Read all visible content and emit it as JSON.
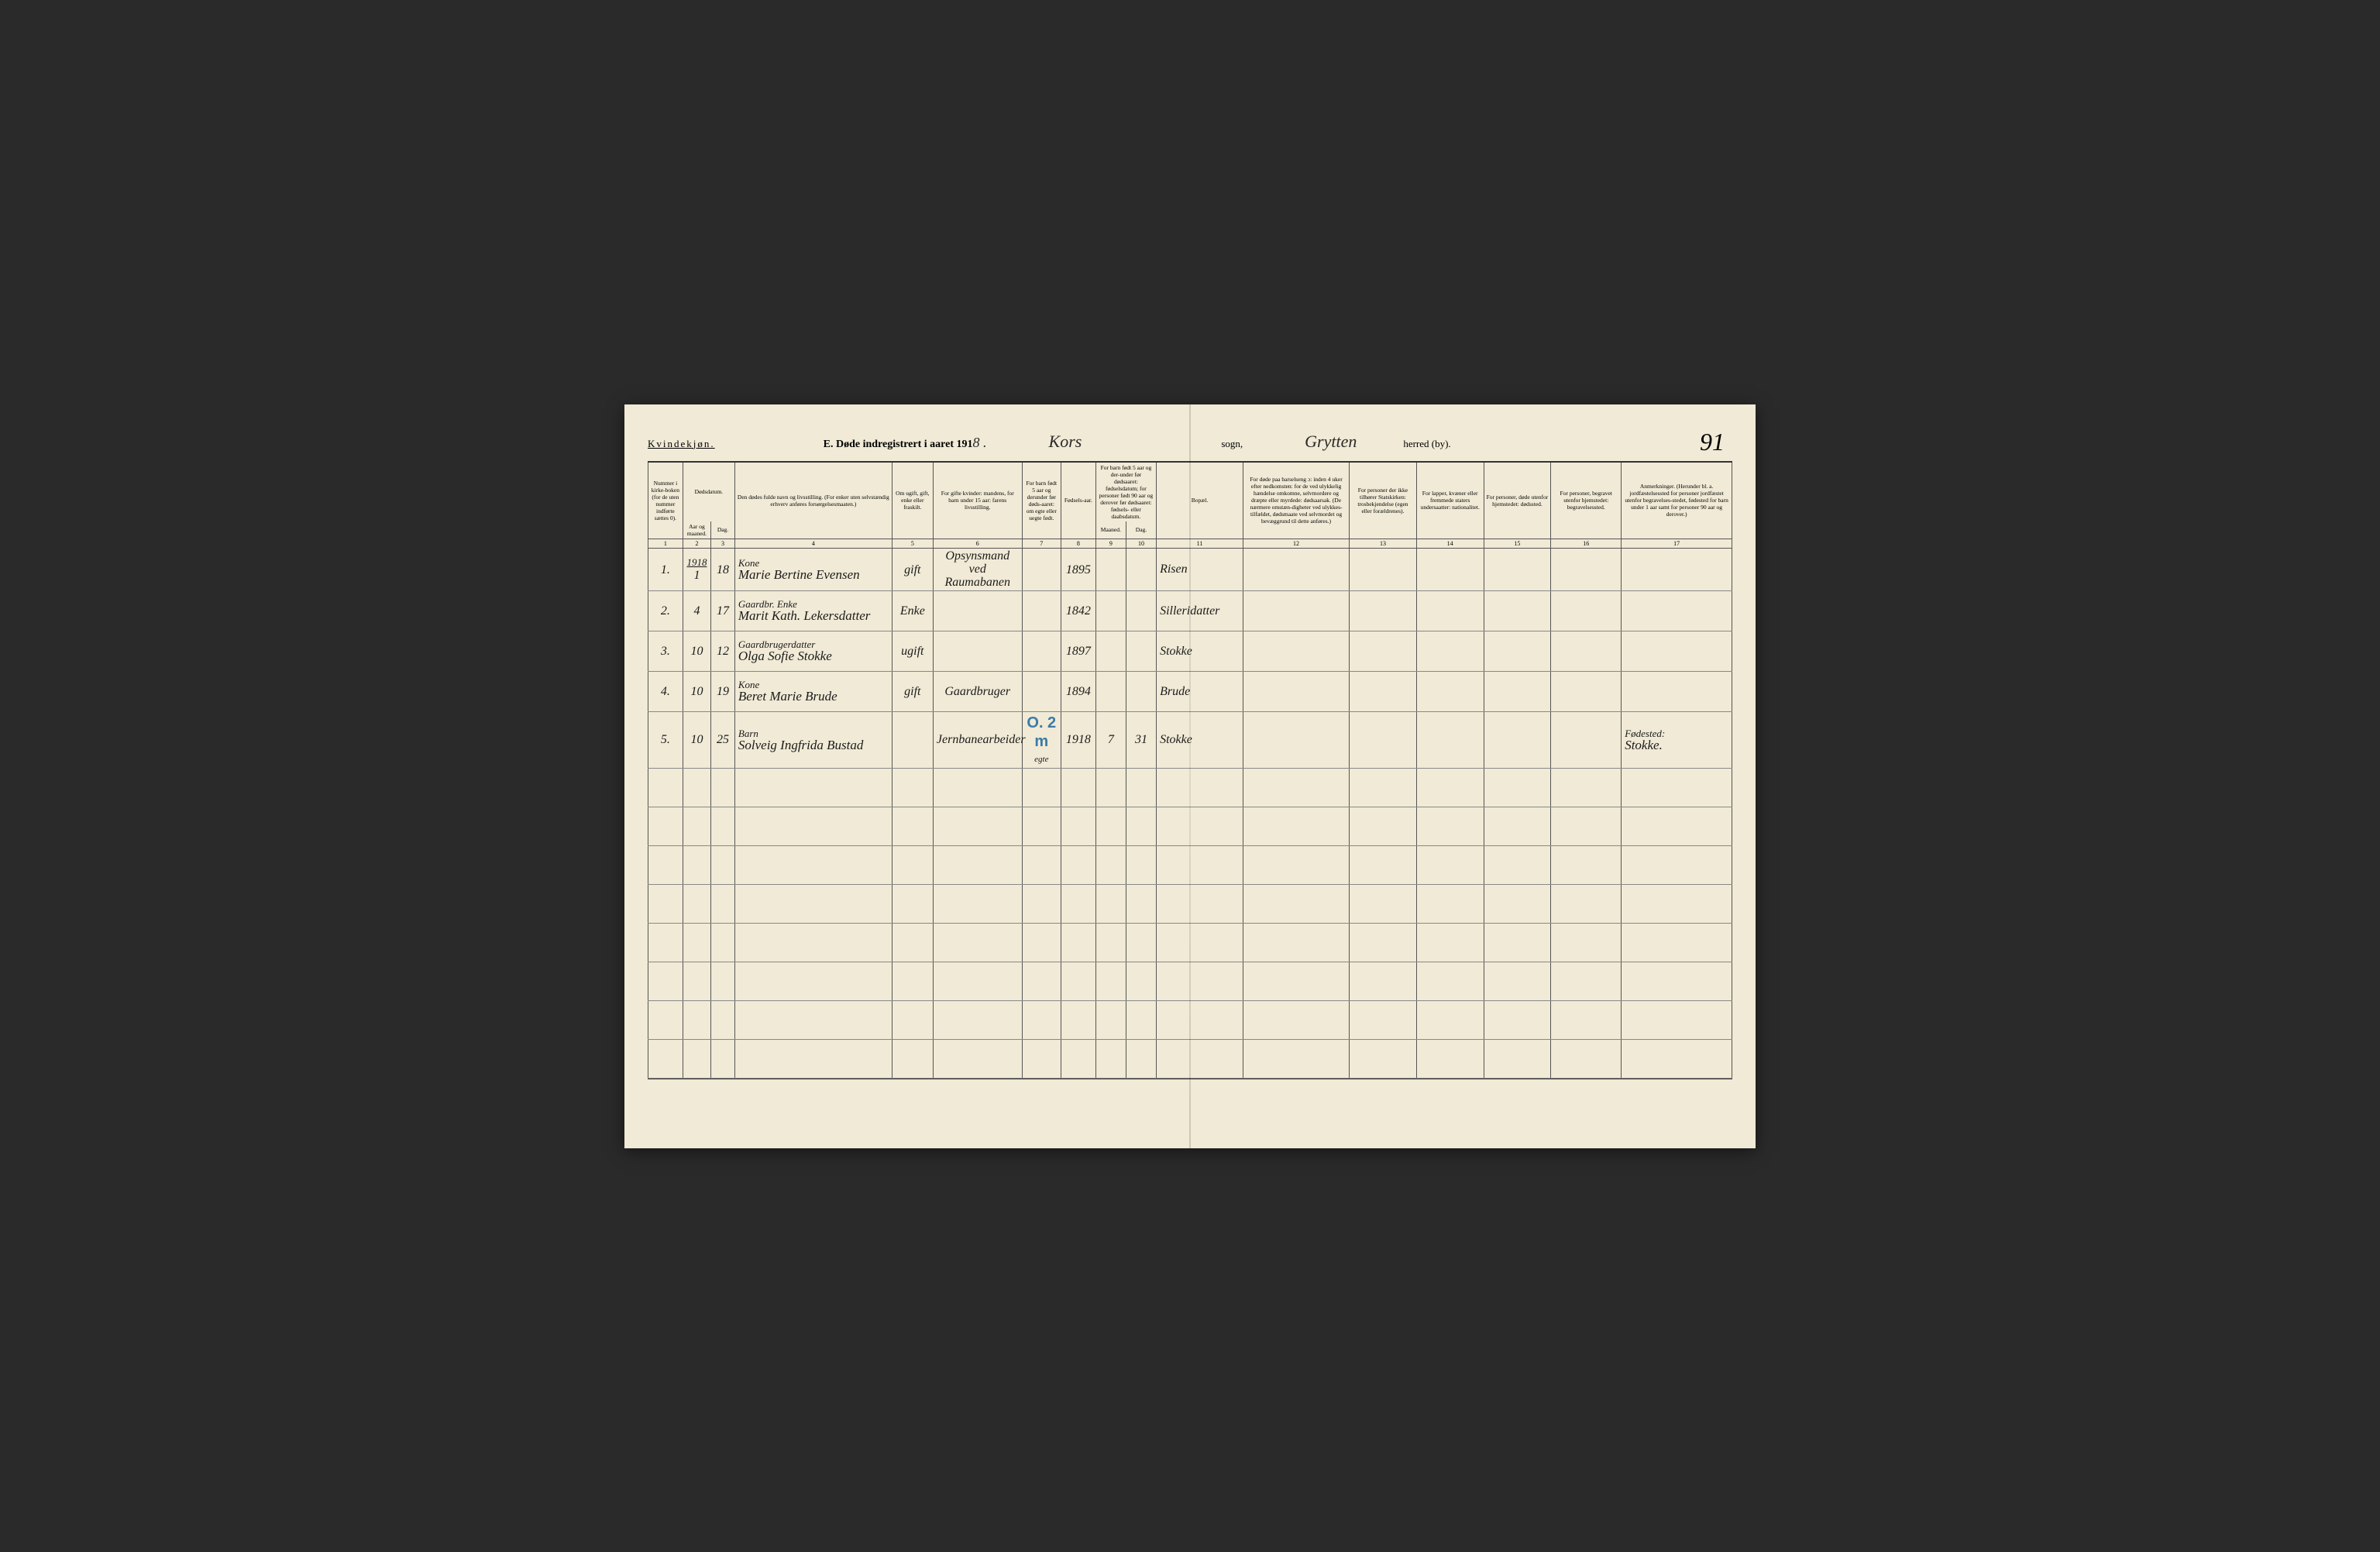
{
  "header": {
    "kvindekjon": "Kvindekjøn.",
    "title_prefix": "E.  Døde indregistrert i aaret 191",
    "year_suffix": "8 .",
    "sogn_name": "Kors",
    "sogn_label": "sogn,",
    "herred_name": "Grytten",
    "herred_label": "herred (by).",
    "page_number": "91"
  },
  "columns": {
    "c1": "Nummer i kirke-boken (for de uten nummer indførte sættes 0).",
    "c2a": "Dødsdatum.",
    "c2_aar": "Aar og maaned.",
    "c2_dag": "Dag.",
    "c4": "Den dødes fulde navn og livsstilling. (For enker uten selvstændig erhverv anføres forsørgelsesmaaten.)",
    "c5": "Om ugift, gift, enke eller fraskilt.",
    "c6": "For gifte kvinder: mandens, for barn under 15 aar: farens livsstilling.",
    "c7": "For barn født 5 aar og derunder før døds-aaret: om egte eller uegte født.",
    "c8": "Fødsels-aar.",
    "c9_10": "For barn født 5 aar og der-under før dødsaaret: fødselsdatum; for personer født 90 aar og derover før dødsaaret: fødsels- eller daabsdatum.",
    "c9": "Maaned.",
    "c10": "Dag.",
    "c11": "Bopæl.",
    "c12": "For døde paa barselseng ɔ: inden 4 uker efter nedkomsten: for de ved ulykkelig hændelse omkomne, selvmordere og dræpte eller myrdede: dødsaarsak. (De nærmere omstæn-digheter ved ulykkes-tilfældet, dødsmaate ved selvmordet og bevæggrund til dette anføres.)",
    "c13": "For personer der ikke tilhører Statskirken: trosbekjendelse (egen eller forældrenes).",
    "c14": "For lapper, kvæner eller fremmede staters undersaatter: nationalitet.",
    "c15": "For personer, døde utenfor hjemstedet: dødssted.",
    "c16": "For personer, begravet utenfor hjemstedet: begravelsessted.",
    "c17": "Anmerkninger. (Herunder bl. a. jordfæstelsessted for personer jordfæstet utenfor begravelses-stedet, fødested for barn under 1 aar samt for personer 90 aar og derover.)"
  },
  "col_numbers": [
    "1",
    "2",
    "3",
    "4",
    "5",
    "6",
    "7",
    "8",
    "9",
    "10",
    "11",
    "12",
    "13",
    "14",
    "15",
    "16",
    "17"
  ],
  "year_header": "1918",
  "rows": [
    {
      "num": "1.",
      "maaned": "1",
      "dag": "18",
      "occupation": "Kone",
      "name": "Marie Bertine Evensen",
      "status": "gift",
      "spouse": "Opsynsmand ved Raumabanen",
      "birth_year": "1895",
      "bopael": "Risen",
      "tick": "✓"
    },
    {
      "num": "2.",
      "maaned": "4",
      "dag": "17",
      "occupation": "Gaardbr. Enke",
      "name": "Marit Kath. Lekersdatter",
      "status": "Enke",
      "spouse": "",
      "birth_year": "1842",
      "bopael": "Silleridatter",
      "tick": "↙"
    },
    {
      "num": "3.",
      "maaned": "10",
      "dag": "12",
      "occupation": "Gaardbrugerdatter",
      "name": "Olga Sofie Stokke",
      "status": "ugift",
      "spouse": "",
      "birth_year": "1897",
      "bopael": "Stokke",
      "tick": "✓"
    },
    {
      "num": "4.",
      "maaned": "10",
      "dag": "19",
      "occupation": "Kone",
      "name": "Beret Marie Brude",
      "status": "gift",
      "spouse": "Gaardbruger",
      "birth_year": "1894",
      "bopael": "Brude",
      "tick": "✓"
    },
    {
      "num": "5.",
      "maaned": "10",
      "dag": "25",
      "occupation": "Barn",
      "name": "Solveig Ingfrida Bustad",
      "status": "",
      "spouse": "Jernbanearbeider",
      "egte": "egte",
      "birth_year": "1918",
      "birth_m": "7",
      "birth_d": "31",
      "bopael": "Stokke",
      "blue": "O. 2 m",
      "anm_top": "Fødested:",
      "anm_bot": "Stokke.",
      "tick": "↙"
    }
  ],
  "empty_row_count": 8,
  "colors": {
    "paper": "#f0ead6",
    "ink": "#1a1a1a",
    "red_tick": "#c44",
    "blue_ink": "#3a7ba8",
    "rule": "#555"
  }
}
